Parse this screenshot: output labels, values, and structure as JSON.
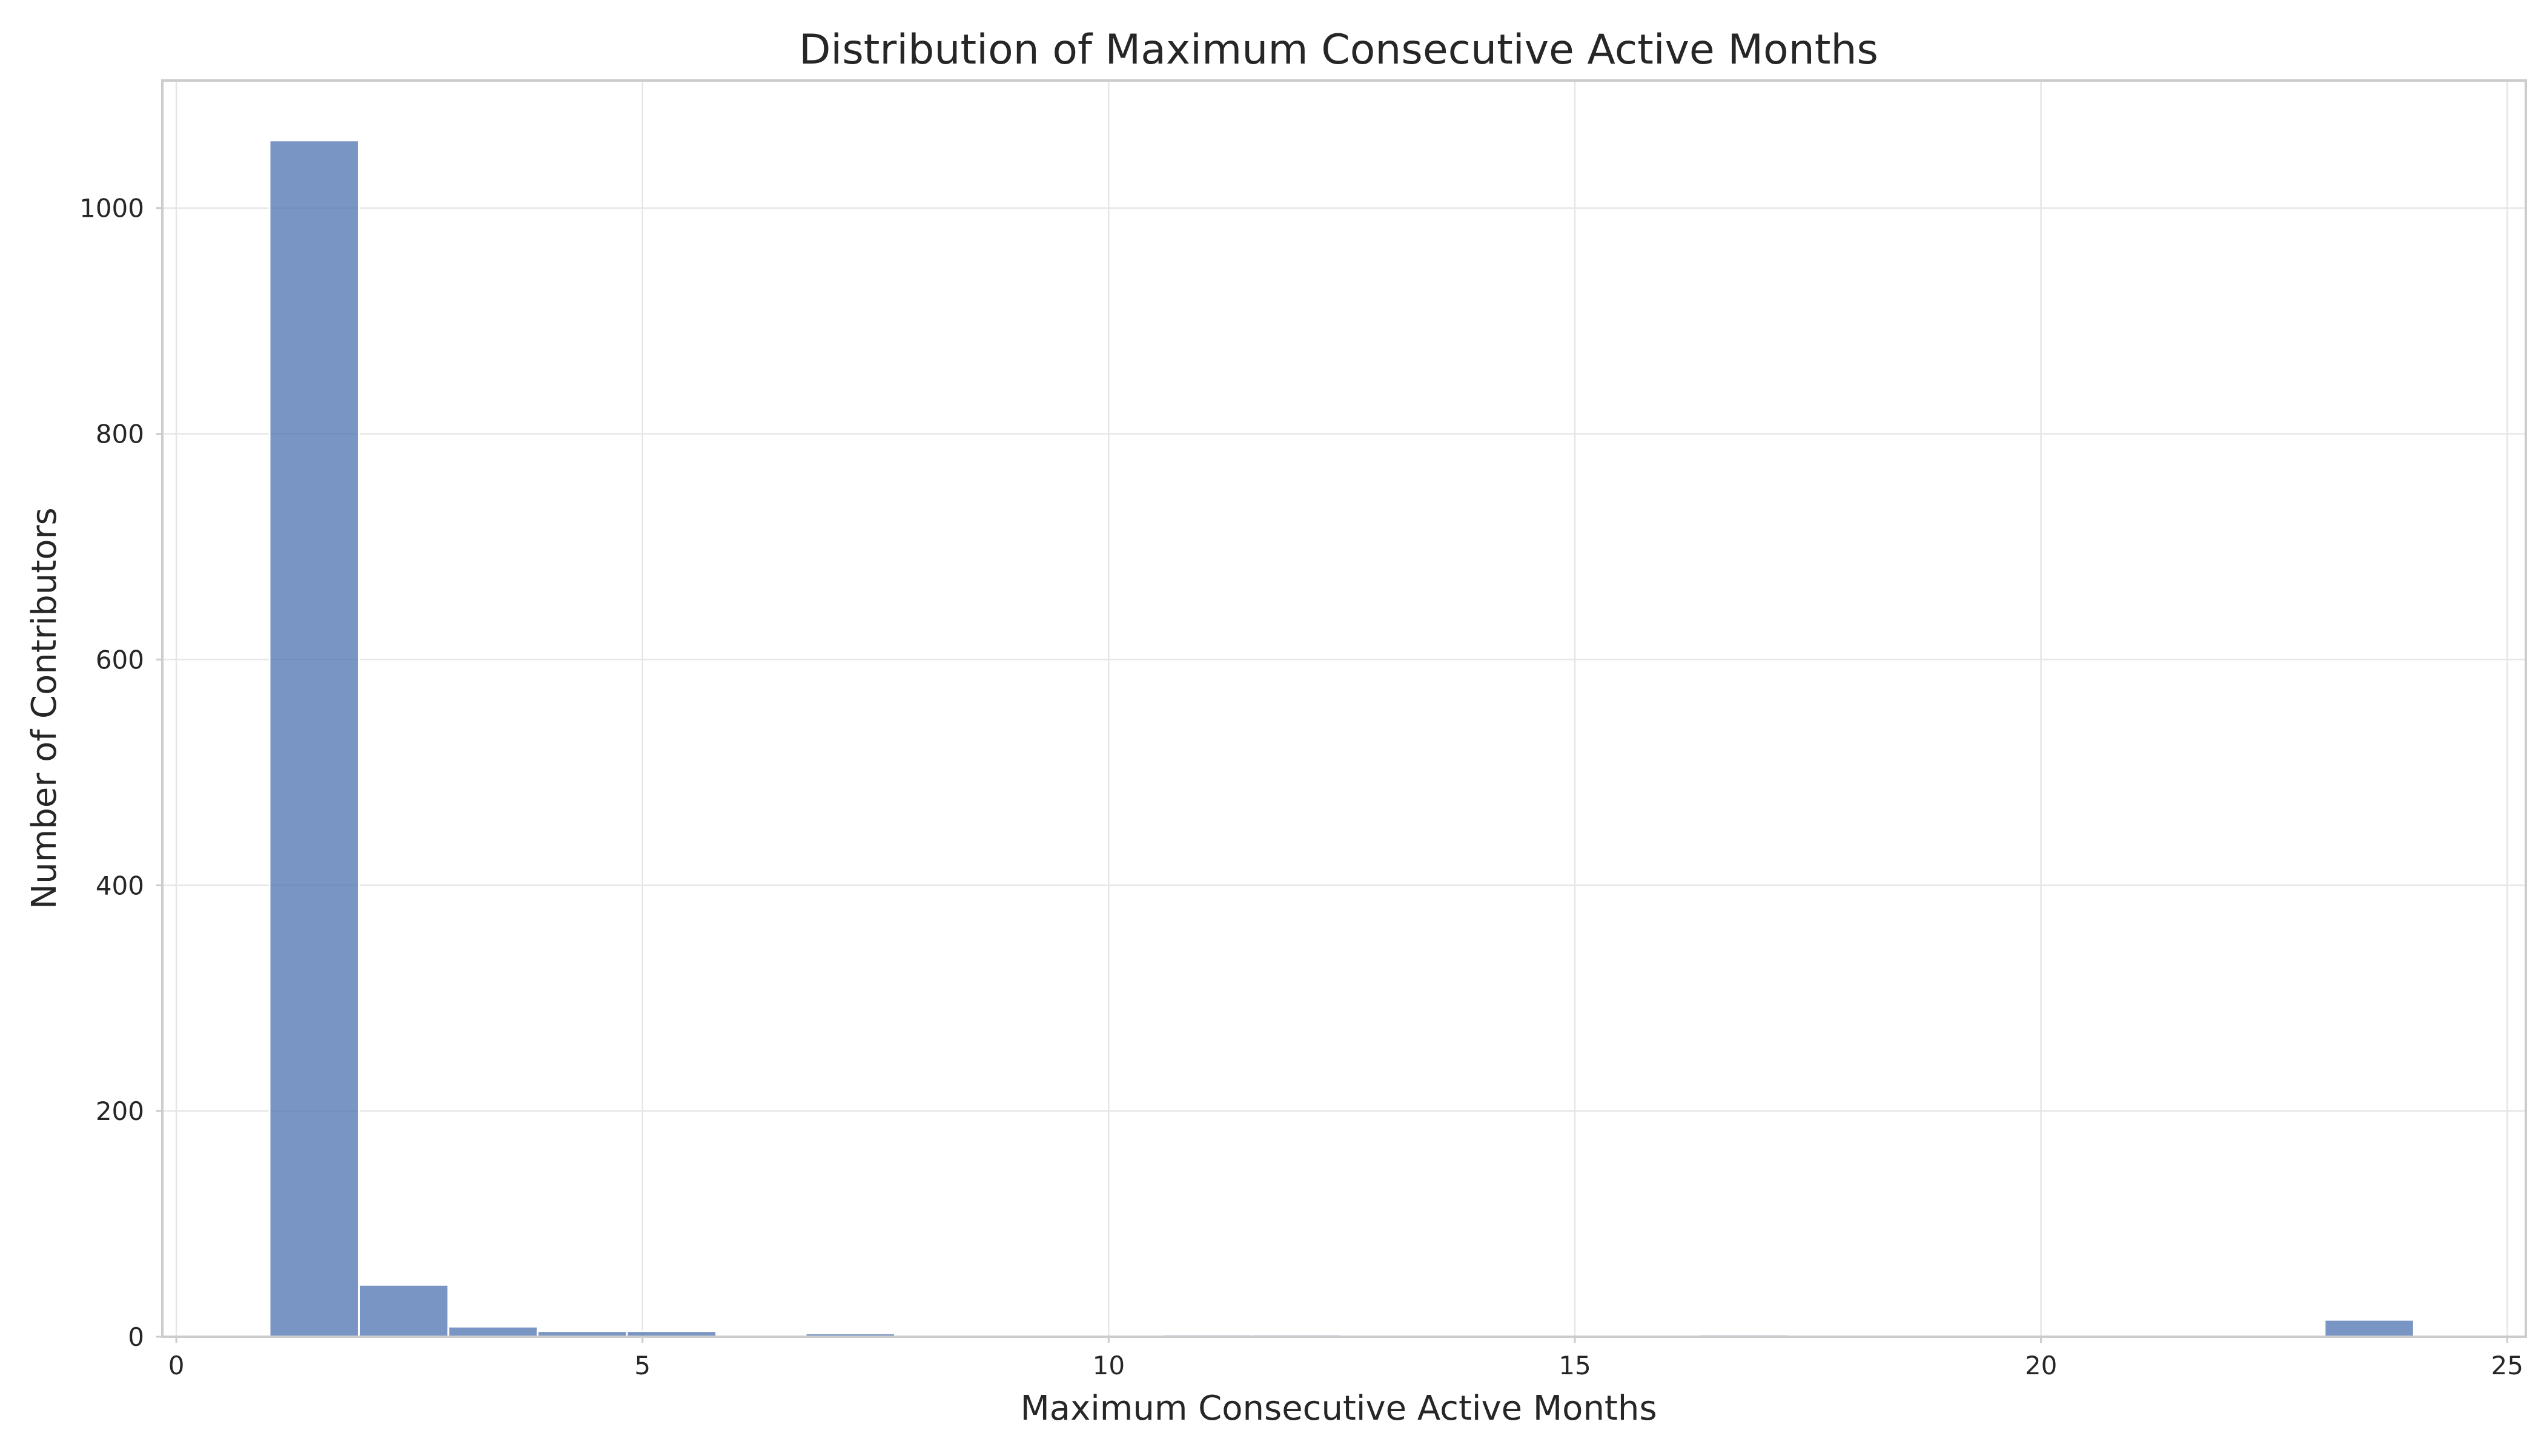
{
  "chart_data": {
    "type": "bar",
    "title": "Distribution of Maximum Consecutive Active Months",
    "xlabel": "Maximum Consecutive Active Months",
    "ylabel": "Number of Contributors",
    "xlim": [
      -0.15,
      25.2
    ],
    "ylim": [
      0,
      1113
    ],
    "xticks": [
      0,
      5,
      10,
      15,
      20,
      25
    ],
    "yticks": [
      0,
      200,
      400,
      600,
      800,
      1000
    ],
    "grid": true,
    "legend": "none",
    "bar_color": "#4c72b0",
    "series": [
      {
        "bins": [
          {
            "x0": 1.0,
            "x1": 1.958,
            "count": 1060
          },
          {
            "x0": 1.958,
            "x1": 2.917,
            "count": 46
          },
          {
            "x0": 2.917,
            "x1": 3.875,
            "count": 9
          },
          {
            "x0": 3.875,
            "x1": 4.833,
            "count": 5
          },
          {
            "x0": 4.833,
            "x1": 5.792,
            "count": 5
          },
          {
            "x0": 6.75,
            "x1": 7.708,
            "count": 3
          },
          {
            "x0": 10.583,
            "x1": 11.542,
            "count": 2
          },
          {
            "x0": 11.542,
            "x1": 12.5,
            "count": 2
          },
          {
            "x0": 16.333,
            "x1": 17.292,
            "count": 2
          },
          {
            "x0": 23.042,
            "x1": 24.0,
            "count": 15
          }
        ]
      }
    ]
  }
}
